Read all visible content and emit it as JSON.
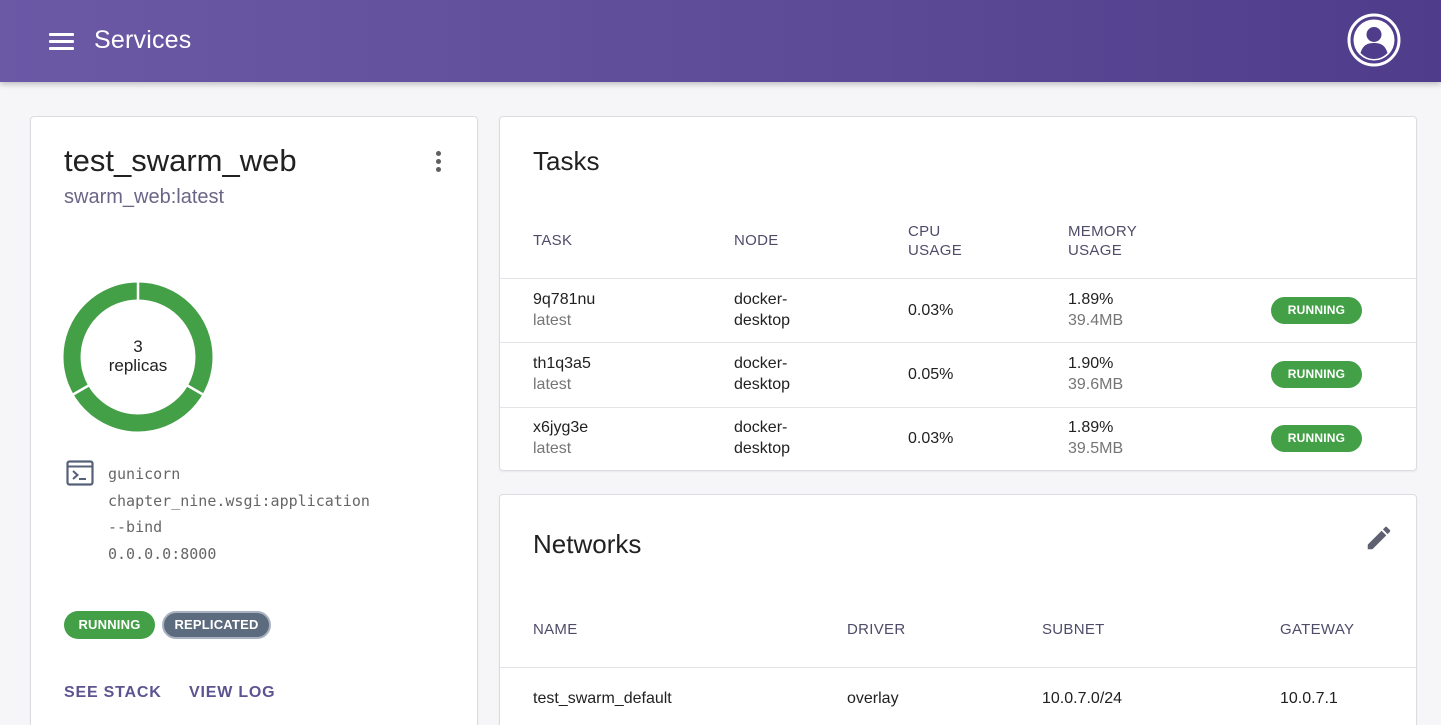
{
  "appbar": {
    "title": "Services",
    "menu_icon": "menu-icon",
    "account_icon": "account-circle-icon"
  },
  "service": {
    "name": "test_swarm_web",
    "image": "swarm_web:latest",
    "replicas_count": "3",
    "replicas_label": "replicas",
    "replicas_running_fraction": 1.0,
    "command_lines": [
      "gunicorn",
      "chapter_nine.wsgi:application",
      "--bind",
      "0.0.0.0:8000"
    ],
    "status_chip": "RUNNING",
    "mode_chip": "REPLICATED",
    "actions": {
      "see_stack": "SEE STACK",
      "view_log": "VIEW LOG"
    }
  },
  "tasks": {
    "title": "Tasks",
    "headers": {
      "task": "TASK",
      "node": "NODE",
      "cpu_line1": "CPU",
      "cpu_line2": "USAGE",
      "mem_line1": "MEMORY",
      "mem_line2": "USAGE"
    },
    "rows": [
      {
        "id": "9q781nu",
        "tag": "latest",
        "node_line1": "docker-",
        "node_line2": "desktop",
        "cpu": "0.03%",
        "mem_pct": "1.89%",
        "mem_size": "39.4MB",
        "status": "RUNNING"
      },
      {
        "id": "th1q3a5",
        "tag": "latest",
        "node_line1": "docker-",
        "node_line2": "desktop",
        "cpu": "0.05%",
        "mem_pct": "1.90%",
        "mem_size": "39.6MB",
        "status": "RUNNING"
      },
      {
        "id": "x6jyg3e",
        "tag": "latest",
        "node_line1": "docker-",
        "node_line2": "desktop",
        "cpu": "0.03%",
        "mem_pct": "1.89%",
        "mem_size": "39.5MB",
        "status": "RUNNING"
      }
    ]
  },
  "networks": {
    "title": "Networks",
    "edit_icon": "pencil-icon",
    "headers": {
      "name": "NAME",
      "driver": "DRIVER",
      "subnet": "SUBNET",
      "gateway": "GATEWAY"
    },
    "rows": [
      {
        "name": "test_swarm_default",
        "driver": "overlay",
        "subnet": "10.0.7.0/24",
        "gateway": "10.0.7.1"
      }
    ]
  },
  "colors": {
    "appbar": "#5c4a96",
    "running": "#43a047",
    "replicated": "#5d6b7f",
    "action": "#5c5490"
  }
}
